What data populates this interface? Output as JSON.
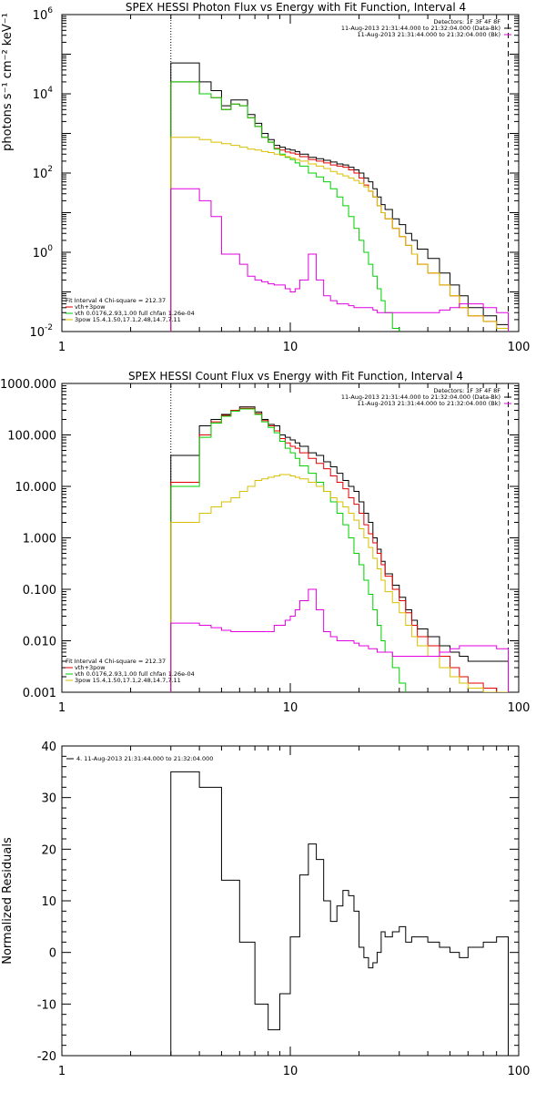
{
  "chart_data": [
    {
      "type": "line",
      "step": true,
      "title": "SPEX HESSI Photon Flux vs Energy with Fit Function, Interval 4",
      "ylabel": "photons s⁻¹ cm⁻² keV⁻¹",
      "xscale": "log",
      "yscale": "log",
      "xlim": [
        1,
        100
      ],
      "ylim": [
        0.01,
        1000000
      ],
      "xticks": [
        {
          "v": 1,
          "label": "1"
        },
        {
          "v": 10,
          "label": "10"
        },
        {
          "v": 100,
          "label": "100"
        }
      ],
      "yticks": [
        {
          "v": 0.01,
          "base": "10",
          "exp": "-2"
        },
        {
          "v": 1,
          "base": "10",
          "exp": "0"
        },
        {
          "v": 100,
          "base": "10",
          "exp": "2"
        },
        {
          "v": 10000,
          "base": "10",
          "exp": "4"
        },
        {
          "v": 1000000,
          "base": "10",
          "exp": "6"
        }
      ],
      "vlines": [
        {
          "x": 3,
          "style": "dotted",
          "color": "#000000"
        },
        {
          "x": 90,
          "style": "dashed",
          "color": "#000000"
        }
      ],
      "legend_top_right": [
        "Detectors: 1F 3F 4F 8F",
        "11-Aug-2013 21:31:44.000 to 21:32:04.000 (Data-Bk)",
        "11-Aug-2013 21:31:44.000 to 21:32:04.000 (Bk)"
      ],
      "legend_bottom_left": {
        "header": "Fit Interval 4   Chi-square = 212.37",
        "items": [
          {
            "label": "vth+3pow",
            "color": "#e00000"
          },
          {
            "label": "vth 0.0176,2.93,1.00  full chfan 1.26e-04",
            "color": "#00d000"
          },
          {
            "label": "3pow 15.4,1.50,17.1,2.48,14.7,7.11",
            "color": "#d8c000"
          }
        ]
      },
      "edges": [
        3,
        3.5,
        4,
        4.5,
        5,
        5.5,
        6,
        6.5,
        7,
        7.5,
        8,
        8.5,
        9,
        9.5,
        10,
        10.5,
        11,
        12,
        13,
        14,
        15,
        16,
        17,
        18,
        19,
        20,
        21,
        22,
        23,
        24,
        25,
        26,
        28,
        30,
        32,
        34,
        36,
        40,
        45,
        50,
        55,
        60,
        70,
        80,
        90
      ],
      "series": [
        {
          "name": "Data-Bk",
          "color": "#000000",
          "values": [
            60000,
            60000,
            20000,
            12000,
            5000,
            7000,
            7000,
            3000,
            1800,
            1000,
            700,
            500,
            450,
            400,
            380,
            350,
            300,
            250,
            230,
            210,
            190,
            170,
            160,
            140,
            120,
            100,
            75,
            60,
            40,
            25,
            16,
            12,
            7,
            5,
            3,
            2,
            1.2,
            0.7,
            0.3,
            0.15,
            0.08,
            0.04,
            0.025,
            0.015
          ]
        },
        {
          "name": "vth+3pow",
          "color": "#e00000",
          "values": [
            20000,
            20000,
            10000,
            8000,
            4000,
            5500,
            5000,
            2500,
            1500,
            800,
            600,
            420,
            380,
            340,
            320,
            300,
            260,
            220,
            200,
            180,
            160,
            150,
            140,
            120,
            100,
            75,
            50,
            35,
            25,
            15,
            10,
            7,
            4,
            2.5,
            1.5,
            0.9,
            0.5,
            0.3,
            0.15,
            0.08,
            0.04,
            0.025,
            0.018,
            0.012
          ]
        },
        {
          "name": "vth",
          "color": "#00d000",
          "values": [
            20000,
            20000,
            10000,
            8000,
            4000,
            5500,
            5000,
            2500,
            1500,
            800,
            600,
            400,
            300,
            250,
            220,
            180,
            150,
            100,
            80,
            60,
            40,
            25,
            15,
            8,
            4,
            2,
            1,
            0.5,
            0.25,
            0.12,
            0.06,
            0.03,
            0.012
          ]
        },
        {
          "name": "3pow",
          "color": "#d8c000",
          "values": [
            800,
            800,
            700,
            600,
            550,
            500,
            450,
            400,
            380,
            350,
            330,
            300,
            280,
            260,
            240,
            220,
            200,
            170,
            150,
            130,
            110,
            95,
            85,
            75,
            65,
            55,
            45,
            35,
            25,
            15,
            10,
            7,
            4,
            2.5,
            1.5,
            0.9,
            0.5,
            0.3,
            0.15,
            0.08,
            0.04,
            0.025,
            0.018,
            0.012
          ]
        },
        {
          "name": "Bk",
          "color": "#e000e0",
          "values": [
            40,
            40,
            20,
            8,
            0.9,
            0.9,
            0.5,
            0.25,
            0.2,
            0.18,
            0.16,
            0.15,
            0.15,
            0.12,
            0.1,
            0.12,
            0.2,
            0.9,
            0.2,
            0.08,
            0.06,
            0.05,
            0.05,
            0.045,
            0.04,
            0.04,
            0.04,
            0.04,
            0.035,
            0.03,
            0.03,
            0.03,
            0.03,
            0.03,
            0.03,
            0.03,
            0.03,
            0.03,
            0.035,
            0.04,
            0.05,
            0.05,
            0.04,
            0.03
          ]
        }
      ]
    },
    {
      "type": "line",
      "step": true,
      "title": "SPEX HESSI Count Flux vs Energy with Fit Function, Interval 4",
      "ylabel": "",
      "xscale": "log",
      "yscale": "log",
      "xlim": [
        1,
        100
      ],
      "ylim": [
        0.001,
        1000
      ],
      "xticks": [
        {
          "v": 1,
          "label": "1"
        },
        {
          "v": 10,
          "label": "10"
        },
        {
          "v": 100,
          "label": "100"
        }
      ],
      "yticks": [
        {
          "v": 0.001,
          "label": "0.001"
        },
        {
          "v": 0.01,
          "label": "0.010"
        },
        {
          "v": 0.1,
          "label": "0.100"
        },
        {
          "v": 1,
          "label": "1.000"
        },
        {
          "v": 10,
          "label": "10.000"
        },
        {
          "v": 100,
          "label": "100.000"
        },
        {
          "v": 1000,
          "label": "1000.000"
        }
      ],
      "vlines": [
        {
          "x": 3,
          "style": "dotted",
          "color": "#000000"
        },
        {
          "x": 90,
          "style": "dashed",
          "color": "#000000"
        }
      ],
      "legend_top_right": [
        "Detectors: 1F 3F 4F 8F",
        "11-Aug-2013 21:31:44.000 to 21:32:04.000 (Data-Bk)",
        "11-Aug-2013 21:31:44.000 to 21:32:04.000 (Bk)"
      ],
      "legend_bottom_left": {
        "header": "Fit Interval 4   Chi-square = 212.37",
        "items": [
          {
            "label": "vth+3pow",
            "color": "#e00000"
          },
          {
            "label": "vth 0.0176,2.93,1.00  full chfan 1.26e-04",
            "color": "#00d000"
          },
          {
            "label": "3pow 15.4,1.50,17.1,2.48,14.7,7.11",
            "color": "#d8c000"
          }
        ]
      },
      "edges": [
        3,
        3.5,
        4,
        4.5,
        5,
        5.5,
        6,
        6.5,
        7,
        7.5,
        8,
        8.5,
        9,
        9.5,
        10,
        10.5,
        11,
        12,
        13,
        14,
        15,
        16,
        17,
        18,
        19,
        20,
        21,
        22,
        23,
        24,
        25,
        26,
        28,
        30,
        32,
        34,
        36,
        40,
        45,
        50,
        55,
        60,
        70,
        80,
        90
      ],
      "series": [
        {
          "name": "Data-Bk",
          "color": "#000000",
          "values": [
            40,
            40,
            150,
            200,
            250,
            300,
            350,
            350,
            280,
            200,
            160,
            150,
            100,
            90,
            80,
            70,
            60,
            45,
            40,
            30,
            24,
            18,
            13,
            10,
            8,
            5,
            3,
            2,
            1,
            0.6,
            0.35,
            0.2,
            0.12,
            0.07,
            0.04,
            0.025,
            0.017,
            0.012,
            0.008,
            0.006,
            0.005,
            0.004,
            0.004,
            0.004
          ]
        },
        {
          "name": "vth+3pow",
          "color": "#e00000",
          "values": [
            12,
            12,
            100,
            180,
            240,
            300,
            330,
            330,
            260,
            190,
            150,
            120,
            85,
            70,
            60,
            55,
            45,
            35,
            28,
            22,
            16,
            12,
            9,
            6,
            4.5,
            3,
            1.8,
            1.2,
            0.8,
            0.5,
            0.3,
            0.18,
            0.1,
            0.06,
            0.035,
            0.02,
            0.012,
            0.008,
            0.005,
            0.003,
            0.002,
            0.0015,
            0.0012,
            0.001
          ]
        },
        {
          "name": "vth",
          "color": "#00d000",
          "values": [
            10,
            10,
            90,
            170,
            230,
            290,
            320,
            320,
            250,
            180,
            140,
            110,
            75,
            55,
            45,
            35,
            25,
            18,
            12,
            8,
            5,
            3,
            1.8,
            1,
            0.5,
            0.3,
            0.15,
            0.08,
            0.04,
            0.02,
            0.01,
            0.006,
            0.003,
            0.0015
          ]
        },
        {
          "name": "3pow",
          "color": "#d8c000",
          "values": [
            2,
            2,
            3,
            4,
            5,
            6,
            8,
            10,
            13,
            14,
            15,
            16,
            17,
            17,
            16,
            15,
            14,
            12,
            10,
            8,
            6,
            5,
            4,
            3,
            2.2,
            1.5,
            1,
            0.65,
            0.4,
            0.25,
            0.15,
            0.09,
            0.055,
            0.035,
            0.02,
            0.012,
            0.008,
            0.005,
            0.003,
            0.002,
            0.0015,
            0.0012,
            0.001,
            0.001
          ]
        },
        {
          "name": "Bk",
          "color": "#e000e0",
          "values": [
            0.022,
            0.022,
            0.02,
            0.018,
            0.016,
            0.015,
            0.015,
            0.015,
            0.015,
            0.015,
            0.015,
            0.02,
            0.02,
            0.025,
            0.03,
            0.04,
            0.06,
            0.1,
            0.04,
            0.015,
            0.012,
            0.01,
            0.01,
            0.01,
            0.009,
            0.008,
            0.008,
            0.007,
            0.007,
            0.006,
            0.006,
            0.006,
            0.005,
            0.005,
            0.005,
            0.005,
            0.005,
            0.005,
            0.006,
            0.007,
            0.008,
            0.008,
            0.008,
            0.007
          ]
        }
      ]
    },
    {
      "type": "line",
      "step": true,
      "title": "",
      "ylabel": "Normalized Residuals",
      "xscale": "log",
      "yscale": "linear",
      "xlim": [
        1,
        100
      ],
      "ylim": [
        -20,
        40
      ],
      "xticks": [
        {
          "v": 1,
          "label": "1"
        },
        {
          "v": 10,
          "label": "10"
        },
        {
          "v": 100,
          "label": "100"
        }
      ],
      "yticks": [
        {
          "v": -20,
          "label": "-20"
        },
        {
          "v": -10,
          "label": "-10"
        },
        {
          "v": 0,
          "label": "0"
        },
        {
          "v": 10,
          "label": "10"
        },
        {
          "v": 20,
          "label": "20"
        },
        {
          "v": 30,
          "label": "30"
        },
        {
          "v": 40,
          "label": "40"
        }
      ],
      "legend_top_left": "4. 11-Aug-2013 21:31:44.000 to 21:32:04.000",
      "edges": [
        3,
        3.5,
        4,
        4.5,
        5,
        5.5,
        6,
        6.5,
        7,
        7.5,
        8,
        8.5,
        9,
        9.5,
        10,
        10.5,
        11,
        12,
        13,
        14,
        15,
        16,
        17,
        18,
        19,
        20,
        21,
        22,
        23,
        24,
        25,
        26,
        28,
        30,
        32,
        34,
        36,
        40,
        45,
        50,
        55,
        60,
        70,
        80,
        90
      ],
      "series": [
        {
          "name": "Residuals",
          "color": "#000000",
          "values": [
            35,
            35,
            32,
            32,
            14,
            14,
            2,
            2,
            -10,
            -10,
            -15,
            -15,
            -8,
            -8,
            3,
            3,
            15,
            21,
            18,
            10,
            6,
            9,
            12,
            11,
            8,
            1,
            -1,
            -3,
            -2,
            0,
            4,
            3,
            4,
            5,
            2,
            3,
            3,
            2,
            1,
            0,
            -1,
            1,
            2,
            3
          ]
        }
      ]
    }
  ]
}
